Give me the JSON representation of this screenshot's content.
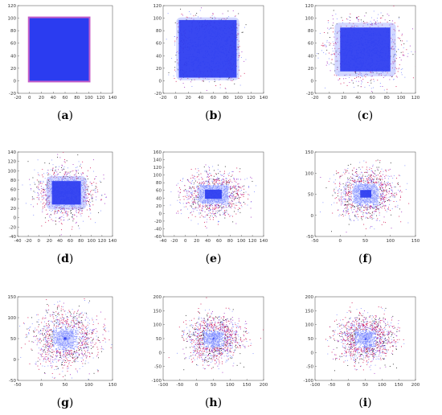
{
  "figure": {
    "colors": {
      "core": "#2b3cf0",
      "halo_blue": "#7f8cff",
      "halo_red": "#d0104f",
      "halo_purple": "#a02ac0",
      "halo_black": "#222222",
      "frame": "#c45ec8"
    }
  },
  "chart_data": [
    {
      "type": "scatter",
      "label": "a",
      "xlim": [
        -20,
        140
      ],
      "ylim": [
        -20,
        120
      ],
      "xticks": [
        "-20",
        "0",
        "20",
        "40",
        "60",
        "80",
        "100",
        "120",
        "140"
      ],
      "yticks": [
        "-20",
        "0",
        "20",
        "40",
        "60",
        "80",
        "100",
        "120"
      ],
      "core": {
        "x": [
          0,
          100
        ],
        "y": [
          0,
          100
        ]
      },
      "spread": 0,
      "description_series": [
        {
          "name": "",
          "region": "uniform square",
          "x_range": [
            0,
            100
          ],
          "y_range": [
            0,
            100
          ]
        }
      ]
    },
    {
      "type": "scatter",
      "label": "b",
      "xlim": [
        -20,
        140
      ],
      "ylim": [
        -20,
        120
      ],
      "xticks": [
        "-20",
        "0",
        "20",
        "40",
        "60",
        "80",
        "100",
        "120",
        "140"
      ],
      "yticks": [
        "-20",
        "0",
        "20",
        "40",
        "60",
        "80",
        "100",
        "120"
      ],
      "core": {
        "x": [
          5,
          97
        ],
        "y": [
          5,
          97
        ]
      },
      "spread": 12
    },
    {
      "type": "scatter",
      "label": "c",
      "xlim": [
        -20,
        120
      ],
      "ylim": [
        -20,
        120
      ],
      "xticks": [
        "-20",
        "0",
        "20",
        "40",
        "60",
        "80",
        "100",
        "120"
      ],
      "yticks": [
        "-20",
        "0",
        "20",
        "40",
        "60",
        "80",
        "100",
        "120"
      ],
      "core": {
        "x": [
          15,
          85
        ],
        "y": [
          15,
          85
        ]
      },
      "spread": 22
    },
    {
      "type": "scatter",
      "label": "d",
      "xlim": [
        -40,
        140
      ],
      "ylim": [
        -40,
        140
      ],
      "xticks": [
        "-40",
        "-20",
        "0",
        "20",
        "40",
        "60",
        "80",
        "100",
        "120",
        "140"
      ],
      "yticks": [
        "-40",
        "-20",
        "0",
        "20",
        "40",
        "60",
        "80",
        "100",
        "120",
        "140"
      ],
      "core": {
        "x": [
          25,
          80
        ],
        "y": [
          28,
          78
        ]
      },
      "spread": 30
    },
    {
      "type": "scatter",
      "label": "e",
      "xlim": [
        -40,
        140
      ],
      "ylim": [
        -60,
        160
      ],
      "xticks": [
        "-40",
        "-20",
        "0",
        "20",
        "40",
        "60",
        "80",
        "100",
        "120",
        "140"
      ],
      "yticks": [
        "-60",
        "-40",
        "-20",
        "0",
        "20",
        "40",
        "60",
        "80",
        "100",
        "120",
        "140",
        "160"
      ],
      "core": {
        "x": [
          35,
          65
        ],
        "y": [
          38,
          62
        ]
      },
      "spread": 34
    },
    {
      "type": "scatter",
      "label": "f",
      "xlim": [
        -50,
        150
      ],
      "ylim": [
        -50,
        150
      ],
      "xticks": [
        "-50",
        "0",
        "50",
        "100",
        "150"
      ],
      "yticks": [
        "-50",
        "0",
        "50",
        "100",
        "150"
      ],
      "core": {
        "x": [
          40,
          62
        ],
        "y": [
          42,
          60
        ]
      },
      "spread": 38
    },
    {
      "type": "scatter",
      "label": "g",
      "xlim": [
        -50,
        150
      ],
      "ylim": [
        -50,
        150
      ],
      "xticks": [
        "-50",
        "0",
        "50",
        "100",
        "150"
      ],
      "yticks": [
        "-50",
        "0",
        "50",
        "100",
        "150"
      ],
      "core": {
        "x": [
          47,
          53
        ],
        "y": [
          47,
          53
        ]
      },
      "spread": 45
    },
    {
      "type": "scatter",
      "label": "h",
      "xlim": [
        -100,
        200
      ],
      "ylim": [
        -100,
        200
      ],
      "xticks": [
        "-100",
        "-50",
        "0",
        "50",
        "100",
        "150",
        "200"
      ],
      "yticks": [
        "-100",
        "-50",
        "0",
        "50",
        "100",
        "150",
        "200"
      ],
      "core": {
        "x": [
          48,
          52
        ],
        "y": [
          48,
          52
        ]
      },
      "spread": 52
    },
    {
      "type": "scatter",
      "label": "i",
      "xlim": [
        -100,
        200
      ],
      "ylim": [
        -100,
        200
      ],
      "xticks": [
        "-100",
        "-50",
        "0",
        "50",
        "100",
        "150",
        "200"
      ],
      "yticks": [
        "-100",
        "-50",
        "0",
        "50",
        "100",
        "150",
        "200"
      ],
      "core": {
        "x": [
          49,
          51
        ],
        "y": [
          49,
          51
        ]
      },
      "spread": 54
    }
  ],
  "labels": {
    "a": "(a)",
    "b": "(b)",
    "c": "(c)",
    "d": "(d)",
    "e": "(e)",
    "f": "(f)",
    "g": "(g)",
    "h": "(h)",
    "i": "(i)"
  }
}
